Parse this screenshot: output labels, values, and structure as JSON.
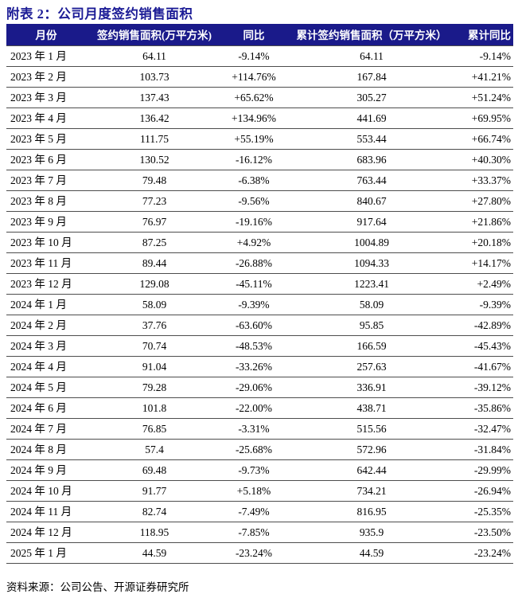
{
  "page": {
    "title": "附表 2：公司月度签约销售面积",
    "source_note": "资料来源：公司公告、开源证券研究所"
  },
  "colors": {
    "header_bg": "#1a1a8a",
    "title_text": "#1c1c96",
    "row_border": "#4d4d4d"
  },
  "table": {
    "headers": {
      "month": "月份",
      "area": "签约销售面积(万平方米)",
      "yoy": "同比",
      "cum_area": "累计签约销售面积（万平方米）",
      "cum_yoy": "累计同比"
    },
    "rows": [
      {
        "month": "2023 年 1 月",
        "area": "64.11",
        "yoy": "-9.14%",
        "cum_area": "64.11",
        "cum_yoy": "-9.14%"
      },
      {
        "month": "2023 年 2 月",
        "area": "103.73",
        "yoy": "+114.76%",
        "cum_area": "167.84",
        "cum_yoy": "+41.21%"
      },
      {
        "month": "2023 年 3 月",
        "area": "137.43",
        "yoy": "+65.62%",
        "cum_area": "305.27",
        "cum_yoy": "+51.24%"
      },
      {
        "month": "2023 年 4 月",
        "area": "136.42",
        "yoy": "+134.96%",
        "cum_area": "441.69",
        "cum_yoy": "+69.95%"
      },
      {
        "month": "2023 年 5 月",
        "area": "111.75",
        "yoy": "+55.19%",
        "cum_area": "553.44",
        "cum_yoy": "+66.74%"
      },
      {
        "month": "2023 年 6 月",
        "area": "130.52",
        "yoy": "-16.12%",
        "cum_area": "683.96",
        "cum_yoy": "+40.30%"
      },
      {
        "month": "2023 年 7 月",
        "area": "79.48",
        "yoy": "-6.38%",
        "cum_area": "763.44",
        "cum_yoy": "+33.37%"
      },
      {
        "month": "2023 年 8 月",
        "area": "77.23",
        "yoy": "-9.56%",
        "cum_area": "840.67",
        "cum_yoy": "+27.80%"
      },
      {
        "month": "2023 年 9 月",
        "area": "76.97",
        "yoy": "-19.16%",
        "cum_area": "917.64",
        "cum_yoy": "+21.86%"
      },
      {
        "month": "2023 年 10 月",
        "area": "87.25",
        "yoy": "+4.92%",
        "cum_area": "1004.89",
        "cum_yoy": "+20.18%"
      },
      {
        "month": "2023 年 11 月",
        "area": "89.44",
        "yoy": "-26.88%",
        "cum_area": "1094.33",
        "cum_yoy": "+14.17%"
      },
      {
        "month": "2023 年 12 月",
        "area": "129.08",
        "yoy": "-45.11%",
        "cum_area": "1223.41",
        "cum_yoy": "+2.49%"
      },
      {
        "month": "2024 年 1 月",
        "area": "58.09",
        "yoy": "-9.39%",
        "cum_area": "58.09",
        "cum_yoy": "-9.39%"
      },
      {
        "month": "2024 年 2 月",
        "area": "37.76",
        "yoy": "-63.60%",
        "cum_area": "95.85",
        "cum_yoy": "-42.89%"
      },
      {
        "month": "2024 年 3 月",
        "area": "70.74",
        "yoy": "-48.53%",
        "cum_area": "166.59",
        "cum_yoy": "-45.43%"
      },
      {
        "month": "2024 年 4 月",
        "area": "91.04",
        "yoy": "-33.26%",
        "cum_area": "257.63",
        "cum_yoy": "-41.67%"
      },
      {
        "month": "2024 年 5 月",
        "area": "79.28",
        "yoy": "-29.06%",
        "cum_area": "336.91",
        "cum_yoy": "-39.12%"
      },
      {
        "month": "2024 年 6 月",
        "area": "101.8",
        "yoy": "-22.00%",
        "cum_area": "438.71",
        "cum_yoy": "-35.86%"
      },
      {
        "month": "2024 年 7 月",
        "area": "76.85",
        "yoy": "-3.31%",
        "cum_area": "515.56",
        "cum_yoy": "-32.47%"
      },
      {
        "month": "2024 年 8 月",
        "area": "57.4",
        "yoy": "-25.68%",
        "cum_area": "572.96",
        "cum_yoy": "-31.84%"
      },
      {
        "month": "2024 年 9 月",
        "area": "69.48",
        "yoy": "-9.73%",
        "cum_area": "642.44",
        "cum_yoy": "-29.99%"
      },
      {
        "month": "2024 年 10 月",
        "area": "91.77",
        "yoy": "+5.18%",
        "cum_area": "734.21",
        "cum_yoy": "-26.94%"
      },
      {
        "month": "2024 年 11 月",
        "area": "82.74",
        "yoy": "-7.49%",
        "cum_area": "816.95",
        "cum_yoy": "-25.35%"
      },
      {
        "month": "2024 年 12 月",
        "area": "118.95",
        "yoy": "-7.85%",
        "cum_area": "935.9",
        "cum_yoy": "-23.50%"
      },
      {
        "month": "2025 年 1 月",
        "area": "44.59",
        "yoy": "-23.24%",
        "cum_area": "44.59",
        "cum_yoy": "-23.24%"
      }
    ]
  }
}
